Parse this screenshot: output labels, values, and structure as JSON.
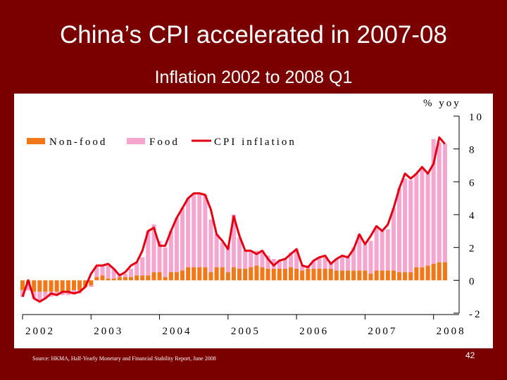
{
  "title": "China’s CPI accelerated in 2007-08",
  "subtitle": "Inflation 2002 to 2008 Q1",
  "source": "Source: HKMA, Half-Yearly Monetary and Financial Stability Report, June 2008",
  "page_number": "42",
  "colors": {
    "background": "#7a0000",
    "non_food": "#f07818",
    "food": "#f5a6cf",
    "cpi": "#e60012"
  },
  "chart_data": {
    "type": "bar",
    "stacked": true,
    "unit_label": "% yoy",
    "x_tick_labels": [
      "2002",
      "2003",
      "2004",
      "2005",
      "2006",
      "2007",
      "2008"
    ],
    "y_ticks": [
      10,
      8,
      6,
      4,
      2,
      0,
      -2
    ],
    "y_tick_labels": [
      "10",
      "8",
      "6",
      "4",
      "2",
      "0",
      "-2"
    ],
    "ylim": [
      -2,
      10
    ],
    "xlim": [
      2002.0,
      2008.25
    ],
    "legend": [
      "Non-food",
      "Food",
      "CPI inflation"
    ],
    "legend_position": "top-left",
    "series": [
      {
        "name": "Non-food",
        "type": "bar",
        "x": [
          2002.0,
          2002.083,
          2002.167,
          2002.25,
          2002.333,
          2002.417,
          2002.5,
          2002.583,
          2002.667,
          2002.75,
          2002.833,
          2002.917,
          2003.0,
          2003.083,
          2003.167,
          2003.25,
          2003.333,
          2003.417,
          2003.5,
          2003.583,
          2003.667,
          2003.75,
          2003.833,
          2003.917,
          2004.0,
          2004.083,
          2004.167,
          2004.25,
          2004.333,
          2004.417,
          2004.5,
          2004.583,
          2004.667,
          2004.75,
          2004.833,
          2004.917,
          2005.0,
          2005.083,
          2005.167,
          2005.25,
          2005.333,
          2005.417,
          2005.5,
          2005.583,
          2005.667,
          2005.75,
          2005.833,
          2005.917,
          2006.0,
          2006.083,
          2006.167,
          2006.25,
          2006.333,
          2006.417,
          2006.5,
          2006.583,
          2006.667,
          2006.75,
          2006.833,
          2006.917,
          2007.0,
          2007.083,
          2007.167,
          2007.25,
          2007.333,
          2007.417,
          2007.5,
          2007.583,
          2007.667,
          2007.75,
          2007.833,
          2007.917,
          2008.0,
          2008.083,
          2008.167
        ],
        "values": [
          -0.6,
          -0.6,
          -0.7,
          -0.7,
          -0.7,
          -0.7,
          -0.7,
          -0.7,
          -0.7,
          -0.6,
          -0.6,
          -0.4,
          -0.4,
          0.2,
          0.3,
          0.1,
          0.1,
          0.2,
          0.2,
          0.2,
          0.3,
          0.3,
          0.3,
          0.5,
          0.5,
          0.2,
          0.5,
          0.5,
          0.6,
          0.8,
          0.8,
          0.8,
          0.8,
          0.5,
          0.8,
          0.8,
          0.5,
          0.8,
          0.7,
          0.7,
          0.8,
          0.9,
          0.8,
          0.7,
          0.7,
          0.7,
          0.7,
          0.8,
          0.7,
          0.6,
          0.7,
          0.7,
          0.7,
          0.7,
          0.7,
          0.6,
          0.6,
          0.6,
          0.6,
          0.6,
          0.6,
          0.4,
          0.6,
          0.6,
          0.6,
          0.6,
          0.5,
          0.5,
          0.5,
          0.8,
          0.8,
          0.9,
          1.0,
          1.1,
          1.1
        ]
      },
      {
        "name": "Food",
        "type": "bar",
        "x": [
          2002.0,
          2002.083,
          2002.167,
          2002.25,
          2002.333,
          2002.417,
          2002.5,
          2002.583,
          2002.667,
          2002.75,
          2002.833,
          2002.917,
          2003.0,
          2003.083,
          2003.167,
          2003.25,
          2003.333,
          2003.417,
          2003.5,
          2003.583,
          2003.667,
          2003.75,
          2003.833,
          2003.917,
          2004.0,
          2004.083,
          2004.167,
          2004.25,
          2004.333,
          2004.417,
          2004.5,
          2004.583,
          2004.667,
          2004.75,
          2004.833,
          2004.917,
          2005.0,
          2005.083,
          2005.167,
          2005.25,
          2005.333,
          2005.417,
          2005.5,
          2005.583,
          2005.667,
          2005.75,
          2005.833,
          2005.917,
          2006.0,
          2006.083,
          2006.167,
          2006.25,
          2006.333,
          2006.417,
          2006.5,
          2006.583,
          2006.667,
          2006.75,
          2006.833,
          2006.917,
          2007.0,
          2007.083,
          2007.167,
          2007.25,
          2007.333,
          2007.417,
          2007.5,
          2007.583,
          2007.667,
          2007.75,
          2007.833,
          2007.917,
          2008.0,
          2008.083,
          2008.167
        ],
        "values": [
          -0.4,
          0.4,
          -0.4,
          -0.5,
          -0.4,
          -0.3,
          -0.2,
          -0.2,
          -0.2,
          -0.2,
          -0.2,
          0.0,
          0.1,
          0.7,
          0.6,
          0.8,
          0.6,
          0.2,
          0.2,
          0.5,
          0.8,
          1.1,
          2.7,
          2.9,
          1.9,
          1.8,
          2.5,
          3.3,
          3.8,
          4.2,
          4.5,
          4.5,
          4.4,
          3.2,
          2.0,
          1.5,
          1.6,
          3.2,
          1.9,
          1.1,
          1.0,
          0.9,
          1.0,
          0.8,
          0.6,
          0.5,
          0.6,
          0.9,
          1.2,
          0.3,
          0.2,
          0.5,
          0.7,
          0.8,
          0.4,
          0.7,
          0.9,
          0.8,
          1.4,
          2.2,
          1.6,
          2.0,
          2.6,
          2.4,
          2.5,
          3.8,
          5.1,
          5.7,
          5.6,
          5.7,
          6.0,
          5.6,
          7.6,
          7.3,
          7.2
        ]
      },
      {
        "name": "CPI inflation",
        "type": "line",
        "x": [
          2002.0,
          2002.083,
          2002.167,
          2002.25,
          2002.333,
          2002.417,
          2002.5,
          2002.583,
          2002.667,
          2002.75,
          2002.833,
          2002.917,
          2003.0,
          2003.083,
          2003.167,
          2003.25,
          2003.333,
          2003.417,
          2003.5,
          2003.583,
          2003.667,
          2003.75,
          2003.833,
          2003.917,
          2004.0,
          2004.083,
          2004.167,
          2004.25,
          2004.333,
          2004.417,
          2004.5,
          2004.583,
          2004.667,
          2004.75,
          2004.833,
          2004.917,
          2005.0,
          2005.083,
          2005.167,
          2005.25,
          2005.333,
          2005.417,
          2005.5,
          2005.583,
          2005.667,
          2005.75,
          2005.833,
          2005.917,
          2006.0,
          2006.083,
          2006.167,
          2006.25,
          2006.333,
          2006.417,
          2006.5,
          2006.583,
          2006.667,
          2006.75,
          2006.833,
          2006.917,
          2007.0,
          2007.083,
          2007.167,
          2007.25,
          2007.333,
          2007.417,
          2007.5,
          2007.583,
          2007.667,
          2007.75,
          2007.833,
          2007.917,
          2008.0,
          2008.083,
          2008.167
        ],
        "values": [
          -1.0,
          0.0,
          -1.1,
          -1.3,
          -1.1,
          -0.8,
          -0.9,
          -0.7,
          -0.7,
          -0.8,
          -0.7,
          -0.4,
          0.4,
          0.9,
          0.9,
          1.0,
          0.7,
          0.3,
          0.5,
          0.9,
          1.1,
          1.8,
          3.0,
          3.2,
          2.1,
          2.1,
          3.0,
          3.8,
          4.4,
          5.0,
          5.3,
          5.3,
          5.2,
          4.3,
          2.8,
          2.4,
          1.9,
          3.9,
          2.7,
          1.8,
          1.8,
          1.6,
          1.8,
          1.3,
          0.9,
          1.2,
          1.3,
          1.6,
          1.9,
          0.9,
          0.8,
          1.2,
          1.4,
          1.5,
          1.0,
          1.3,
          1.5,
          1.4,
          1.9,
          2.8,
          2.2,
          2.7,
          3.3,
          3.0,
          3.4,
          4.4,
          5.6,
          6.5,
          6.2,
          6.5,
          6.9,
          6.5,
          7.1,
          8.7,
          8.3
        ]
      }
    ]
  }
}
